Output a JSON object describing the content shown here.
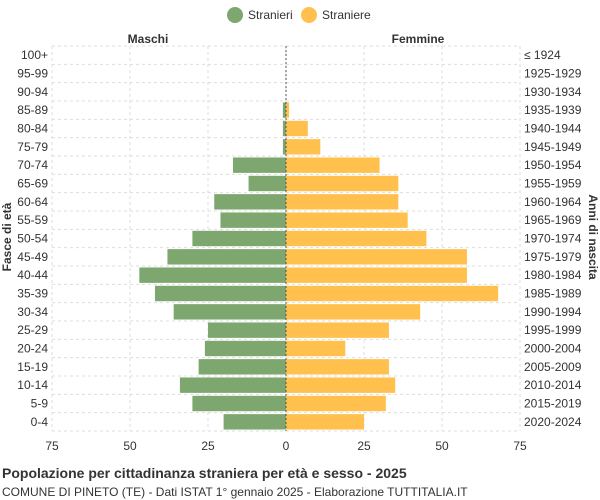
{
  "colors": {
    "male": "#7ea66f",
    "female": "#ffc04d",
    "grid": "#dddddd",
    "center": "#555555"
  },
  "legend": {
    "male_label": "Stranieri",
    "female_label": "Straniere"
  },
  "chart_data": {
    "type": "bar",
    "orientation": "horizontal-pyramid",
    "title": "Popolazione per cittadinanza straniera per età e sesso - 2025",
    "subtitle": "COMUNE DI PINETO (TE) - Dati ISTAT 1° gennaio 2025 - Elaborazione TUTTITALIA.IT",
    "left_header": "Maschi",
    "right_header": "Femmine",
    "ylabel_left": "Fasce di età",
    "ylabel_right": "Anni di nascita",
    "xlim": [
      -75,
      75
    ],
    "xticks": [
      -75,
      -50,
      -25,
      0,
      25,
      50,
      75
    ],
    "xtick_labels": [
      "75",
      "50",
      "25",
      "0",
      "25",
      "50",
      "75"
    ],
    "grid": true,
    "legend_position": "top-center",
    "categories": [
      "100+",
      "95-99",
      "90-94",
      "85-89",
      "80-84",
      "75-79",
      "70-74",
      "65-69",
      "60-64",
      "55-59",
      "50-54",
      "45-49",
      "40-44",
      "35-39",
      "30-34",
      "25-29",
      "20-24",
      "15-19",
      "10-14",
      "5-9",
      "0-4"
    ],
    "birth_years": [
      "≤ 1924",
      "1925-1929",
      "1930-1934",
      "1935-1939",
      "1940-1944",
      "1945-1949",
      "1950-1954",
      "1955-1959",
      "1960-1964",
      "1965-1969",
      "1970-1974",
      "1975-1979",
      "1980-1984",
      "1985-1989",
      "1990-1994",
      "1995-1999",
      "2000-2004",
      "2005-2009",
      "2010-2014",
      "2015-2019",
      "2020-2024"
    ],
    "series": [
      {
        "name": "Stranieri",
        "values": [
          0,
          0,
          0,
          1,
          1,
          1,
          17,
          12,
          23,
          21,
          30,
          38,
          47,
          42,
          36,
          25,
          26,
          28,
          34,
          30,
          20
        ]
      },
      {
        "name": "Straniere",
        "values": [
          0,
          0,
          0,
          1,
          7,
          11,
          30,
          36,
          36,
          39,
          45,
          58,
          58,
          68,
          43,
          33,
          19,
          33,
          35,
          32,
          25
        ]
      }
    ]
  }
}
